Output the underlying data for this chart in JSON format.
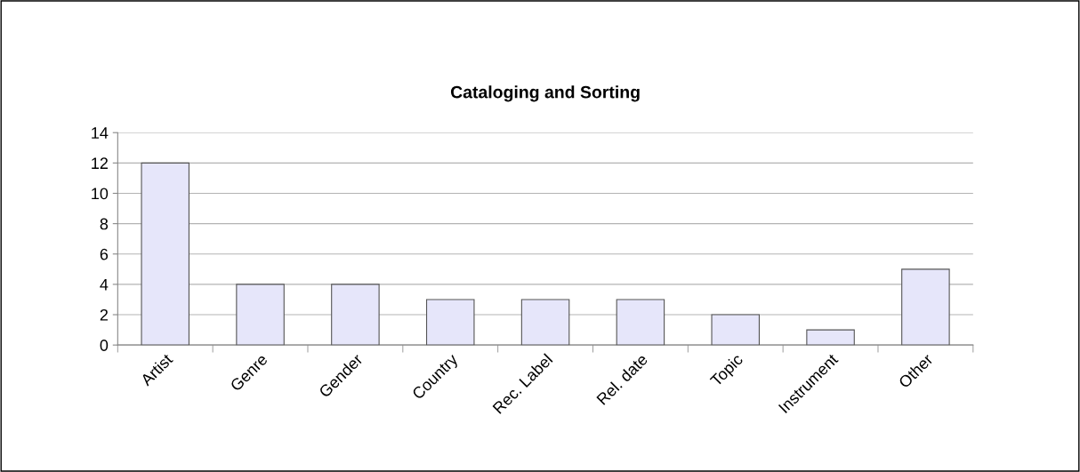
{
  "chart_data": {
    "type": "bar",
    "title": "Cataloging and Sorting",
    "categories": [
      "Artist",
      "Genre",
      "Gender",
      "Country",
      "Rec. Label",
      "Rel. date",
      "Topic",
      "Instrument",
      "Other"
    ],
    "values": [
      12,
      4,
      4,
      3,
      3,
      3,
      2,
      1,
      5
    ],
    "color": "#e6e6fa",
    "ylim": [
      0,
      14
    ],
    "yticks": [
      0,
      2,
      4,
      6,
      8,
      10,
      12,
      14
    ],
    "grid": "y",
    "legend": false
  }
}
